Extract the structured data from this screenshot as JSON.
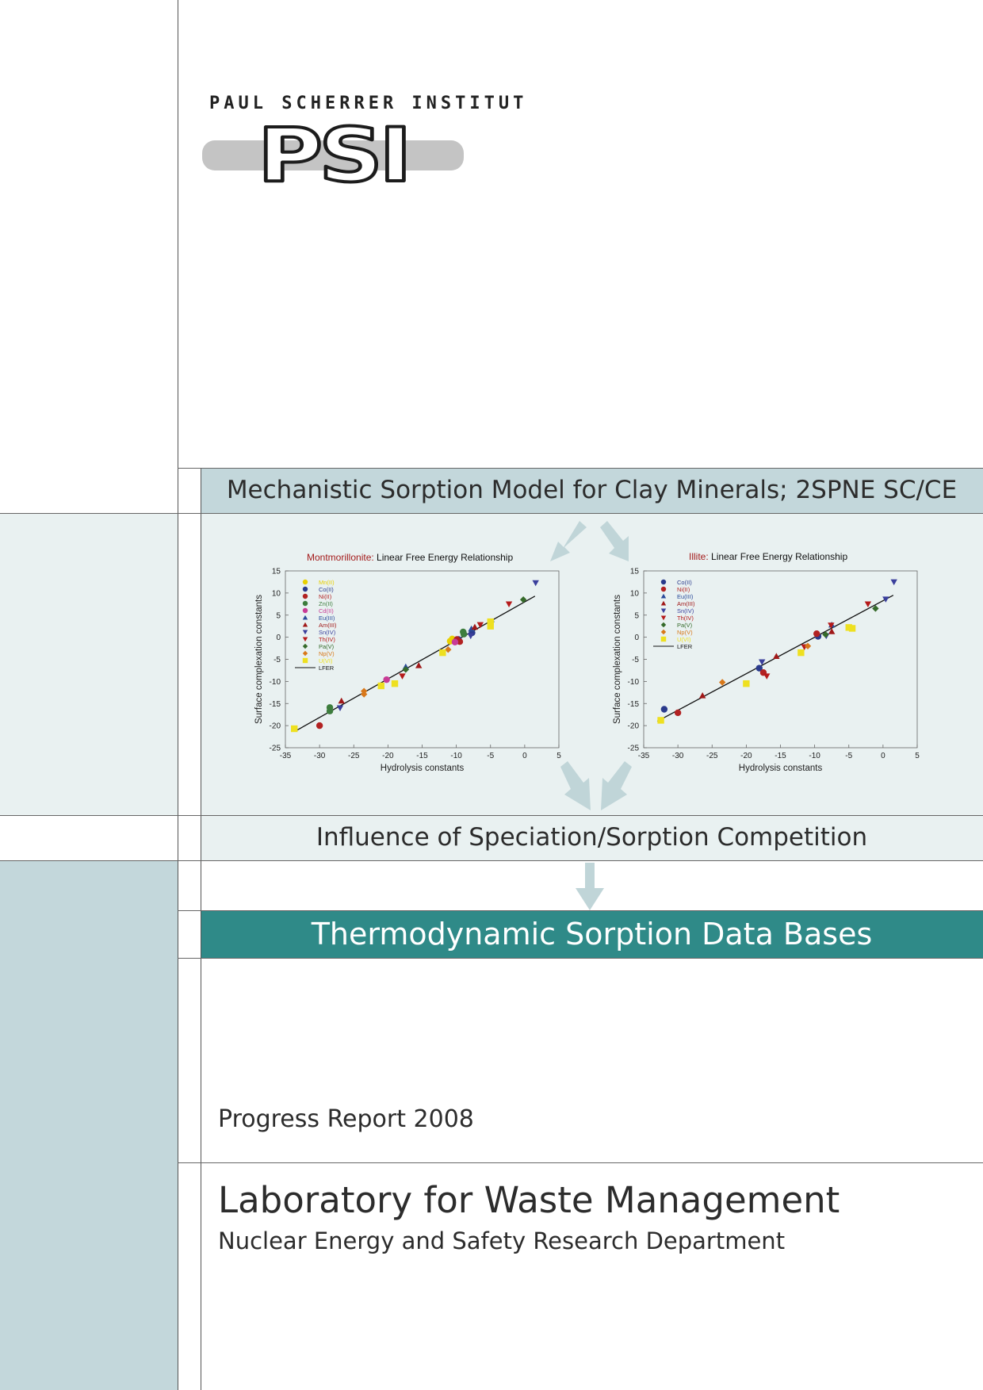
{
  "logo": {
    "institute": "PAUL SCHERRER INSTITUT",
    "mark": "PSI"
  },
  "bands": {
    "model_heading": "Mechanistic Sorption Model for Clay Minerals; 2SPNE SC/CE",
    "speciation_heading": "Influence of Speciation/Sorption Competition",
    "database_heading": "Thermodynamic Sorption Data Bases"
  },
  "report": {
    "label": "Progress Report 2008",
    "lab": "Laboratory for Waste Management",
    "department": "Nuclear Energy and Safety Research Department"
  },
  "colors": {
    "band_light": "#e9f1f1",
    "band_blue": "#c3d7db",
    "band_teal": "#2f8a88",
    "arrow": "#c0d5d8"
  },
  "chart_data": [
    {
      "type": "scatter",
      "title_mineral": "Montmorillonite:",
      "title_rest": "Linear Free Energy Relationship",
      "xlabel": "Hydrolysis constants",
      "ylabel": "Surface complexation constants",
      "xlim": [
        -35,
        5
      ],
      "ylim": [
        -25,
        15
      ],
      "xticks": [
        "-35",
        "-30",
        "-25",
        "-20",
        "-15",
        "-10",
        "-5",
        "0",
        "5"
      ],
      "yticks": [
        "15",
        "10",
        "5",
        "0",
        "-5",
        "-10",
        "-15",
        "-20",
        "-25"
      ],
      "legend_position": "top-left",
      "fit": {
        "name": "LFER",
        "x": [
          -33.5,
          1.5
        ],
        "y": [
          -21.2,
          9.3
        ]
      },
      "series": [
        {
          "name": "Mn(II)",
          "marker": "circle",
          "color": "#e8d000",
          "points": [
            [
              -10.6,
              -0.4
            ],
            [
              -10.9,
              -0.9
            ]
          ]
        },
        {
          "name": "Co(II)",
          "marker": "circle",
          "color": "#2a3a8c",
          "points": [
            [
              -9.7,
              -0.5
            ],
            [
              -7.7,
              1.0
            ]
          ]
        },
        {
          "name": "Ni(II)",
          "marker": "circle",
          "color": "#b22222",
          "points": [
            [
              -30.0,
              -20.0
            ],
            [
              -9.9,
              -0.5
            ],
            [
              -9.5,
              -1.0
            ]
          ]
        },
        {
          "name": "Zn(II)",
          "marker": "circle",
          "color": "#3d7d3d",
          "points": [
            [
              -28.5,
              -15.9
            ],
            [
              -28.5,
              -16.7
            ],
            [
              -9.0,
              1.2
            ],
            [
              -8.9,
              0.7
            ]
          ]
        },
        {
          "name": "Cd(II)",
          "marker": "circle",
          "color": "#c83c96",
          "points": [
            [
              -20.2,
              -9.6
            ],
            [
              -10.2,
              -1.1
            ]
          ]
        },
        {
          "name": "Eu(III)",
          "marker": "triangle-up",
          "color": "#2a4a9a",
          "points": [
            [
              -17.4,
              -6.7
            ],
            [
              -7.8,
              1.9
            ]
          ]
        },
        {
          "name": "Am(III)",
          "marker": "triangle-up",
          "color": "#a01818",
          "points": [
            [
              -26.8,
              -14.4
            ],
            [
              -15.5,
              -6.4
            ],
            [
              -7.3,
              2.3
            ]
          ]
        },
        {
          "name": "Sn(IV)",
          "marker": "triangle-down",
          "color": "#3a3f9c",
          "points": [
            [
              -27.0,
              -16.0
            ],
            [
              -7.9,
              0.3
            ],
            [
              1.6,
              12.3
            ]
          ]
        },
        {
          "name": "Th(IV)",
          "marker": "triangle-down",
          "color": "#b51a1a",
          "points": [
            [
              -17.9,
              -8.8
            ],
            [
              -6.5,
              2.8
            ],
            [
              -2.3,
              7.5
            ]
          ]
        },
        {
          "name": "Pa(V)",
          "marker": "diamond",
          "color": "#356a2a",
          "points": [
            [
              -17.4,
              -7.3
            ],
            [
              -4.9,
              3.5
            ],
            [
              -0.2,
              8.5
            ]
          ]
        },
        {
          "name": "Np(V)",
          "marker": "diamond",
          "color": "#d8781a",
          "points": [
            [
              -23.5,
              -12.2
            ],
            [
              -23.5,
              -12.9
            ],
            [
              -11.2,
              -2.8
            ]
          ]
        },
        {
          "name": "U(VI)",
          "marker": "square",
          "color": "#eee020",
          "points": [
            [
              -33.7,
              -20.7
            ],
            [
              -21.0,
              -11.0
            ],
            [
              -19.0,
              -10.5
            ],
            [
              -12.0,
              -3.5
            ],
            [
              -5.0,
              2.5
            ],
            [
              -5.0,
              3.5
            ]
          ]
        }
      ]
    },
    {
      "type": "scatter",
      "title_mineral": "Illite:",
      "title_rest": "Linear Free Energy Relationship",
      "xlabel": "Hydrolysis constants",
      "ylabel": "Surface complexation constants",
      "xlim": [
        -35,
        5
      ],
      "ylim": [
        -25,
        15
      ],
      "xticks": [
        "-35",
        "-30",
        "-25",
        "-20",
        "-15",
        "-10",
        "-5",
        "0",
        "5"
      ],
      "yticks": [
        "15",
        "10",
        "5",
        "0",
        "-5",
        "-10",
        "-15",
        "-20",
        "-25"
      ],
      "legend_position": "top-left",
      "fit": {
        "name": "LFER",
        "x": [
          -33,
          1.5
        ],
        "y": [
          -19.0,
          9.5
        ]
      },
      "series": [
        {
          "name": "Co(II)",
          "marker": "circle",
          "color": "#2a3a8c",
          "points": [
            [
              -32.0,
              -16.3
            ],
            [
              -18.1,
              -7.0
            ],
            [
              -9.5,
              0.2
            ]
          ]
        },
        {
          "name": "Ni(II)",
          "marker": "circle",
          "color": "#b22222",
          "points": [
            [
              -30.0,
              -17.1
            ],
            [
              -17.5,
              -8.0
            ],
            [
              -9.7,
              0.8
            ]
          ]
        },
        {
          "name": "Eu(III)",
          "marker": "triangle-up",
          "color": "#2a4a9a",
          "points": [
            [
              -7.5,
              2.8
            ]
          ]
        },
        {
          "name": "Am(III)",
          "marker": "triangle-up",
          "color": "#a01818",
          "points": [
            [
              -26.4,
              -13.2
            ],
            [
              -15.6,
              -4.3
            ],
            [
              -7.5,
              1.3
            ]
          ]
        },
        {
          "name": "Sn(IV)",
          "marker": "triangle-down",
          "color": "#3a3f9c",
          "points": [
            [
              -17.7,
              -5.6
            ],
            [
              -8.3,
              0.3
            ],
            [
              0.4,
              8.6
            ],
            [
              1.6,
              12.5
            ]
          ]
        },
        {
          "name": "Th(IV)",
          "marker": "triangle-down",
          "color": "#b51a1a",
          "points": [
            [
              -17.0,
              -8.8
            ],
            [
              -11.5,
              -2.2
            ],
            [
              -7.6,
              2.7
            ],
            [
              -2.2,
              7.5
            ]
          ]
        },
        {
          "name": "Pa(V)",
          "marker": "diamond",
          "color": "#356a2a",
          "points": [
            [
              -8.4,
              0.6
            ],
            [
              -1.1,
              6.5
            ]
          ]
        },
        {
          "name": "Np(V)",
          "marker": "diamond",
          "color": "#d8781a",
          "points": [
            [
              -23.5,
              -10.2
            ],
            [
              -11.0,
              -2.0
            ]
          ]
        },
        {
          "name": "U(VI)",
          "marker": "square",
          "color": "#eee020",
          "points": [
            [
              -32.5,
              -18.8
            ],
            [
              -20.0,
              -10.5
            ],
            [
              -12.0,
              -3.5
            ],
            [
              -5.0,
              2.2
            ],
            [
              -4.5,
              2.0
            ]
          ]
        }
      ]
    }
  ]
}
